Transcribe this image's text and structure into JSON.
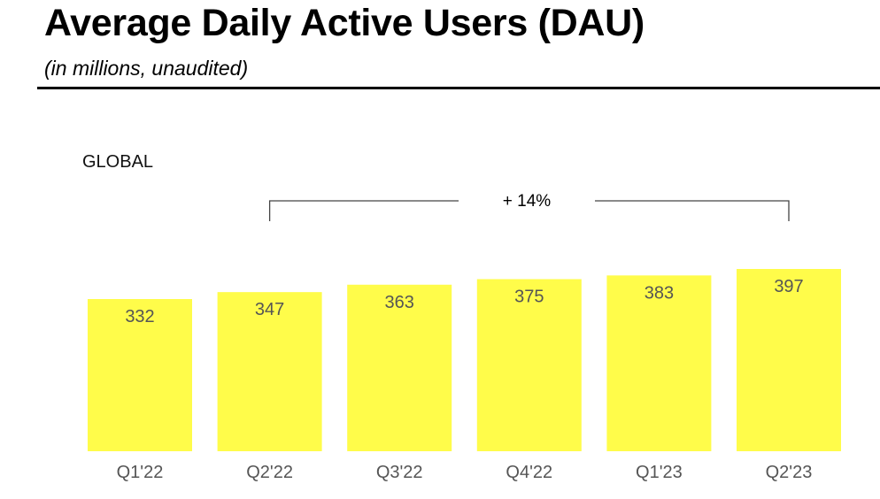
{
  "header": {
    "title": "Average Daily Active Users (DAU)",
    "subtitle": "(in millions, unaudited)"
  },
  "chart_data": {
    "type": "bar",
    "region_label": "GLOBAL",
    "categories": [
      "Q1'22",
      "Q2'22",
      "Q3'22",
      "Q4'22",
      "Q1'23",
      "Q2'23"
    ],
    "values": [
      332,
      347,
      363,
      375,
      383,
      397
    ],
    "bar_color": "#FFFC4A",
    "label_color": "#555555",
    "annotation": {
      "text": "+ 14%",
      "from": "Q2'22",
      "to": "Q2'23"
    },
    "legend": "none",
    "grid": false
  }
}
